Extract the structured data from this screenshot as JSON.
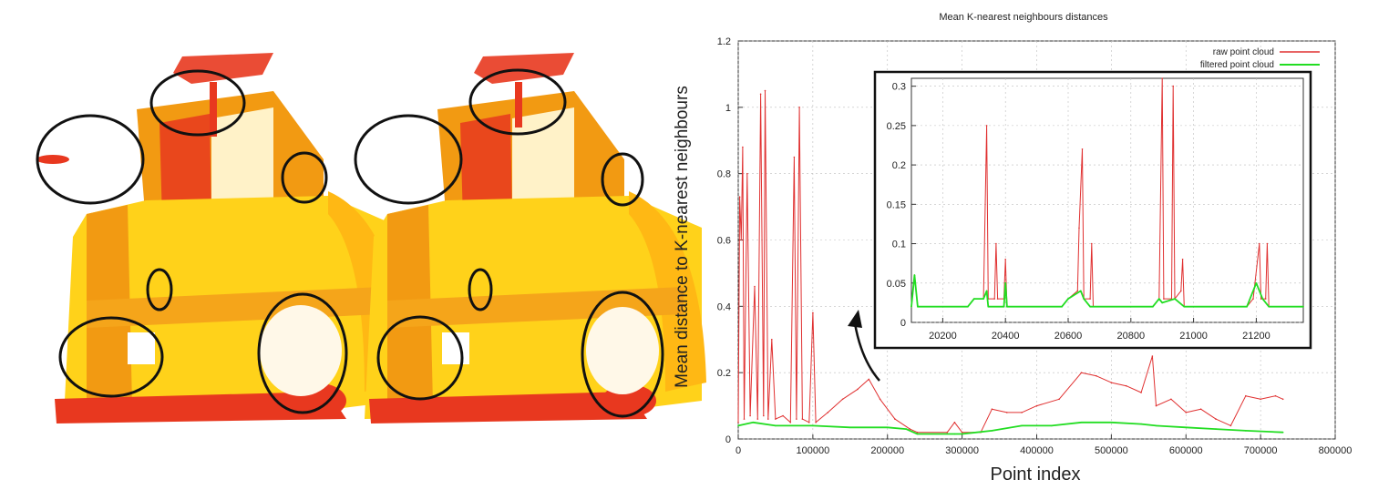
{
  "left_panel": {
    "images": [
      {
        "name": "raw-cloud",
        "circles": 7
      },
      {
        "name": "filtered-cloud",
        "circles": 7
      }
    ],
    "colors": {
      "red": "#e8381f",
      "orange": "#f29a12",
      "yellow": "#ffd21a",
      "outline": "#111111"
    }
  },
  "chart_data": [
    {
      "type": "line",
      "title": "Mean K-nearest neighbours distances",
      "xlabel": "Point index",
      "ylabel": "Mean distance to K-nearest neighbours",
      "xlim": [
        0,
        800000
      ],
      "ylim": [
        0,
        1.2
      ],
      "x_ticks": [
        "0",
        "100000",
        "200000",
        "300000",
        "400000",
        "500000",
        "600000",
        "700000",
        "800000"
      ],
      "y_ticks": [
        "0",
        "0.2",
        "0.4",
        "0.6",
        "0.8",
        "1",
        "1.2"
      ],
      "grid": true,
      "legend": "top-right",
      "series": [
        {
          "name": "raw point cloud",
          "color": "#e03030",
          "points": [
            [
              0,
              0.05
            ],
            [
              2000,
              0.73
            ],
            [
              4000,
              0.6
            ],
            [
              6000,
              0.88
            ],
            [
              8000,
              0.06
            ],
            [
              12000,
              0.8
            ],
            [
              16000,
              0.07
            ],
            [
              22000,
              0.46
            ],
            [
              26000,
              0.06
            ],
            [
              30000,
              1.04
            ],
            [
              34000,
              0.07
            ],
            [
              36000,
              1.05
            ],
            [
              40000,
              0.06
            ],
            [
              45000,
              0.3
            ],
            [
              50000,
              0.06
            ],
            [
              60000,
              0.07
            ],
            [
              70000,
              0.05
            ],
            [
              75000,
              0.85
            ],
            [
              78000,
              0.06
            ],
            [
              82000,
              1.0
            ],
            [
              86000,
              0.06
            ],
            [
              95000,
              0.05
            ],
            [
              100000,
              0.38
            ],
            [
              104000,
              0.05
            ],
            [
              120000,
              0.08
            ],
            [
              140000,
              0.12
            ],
            [
              160000,
              0.15
            ],
            [
              175000,
              0.18
            ],
            [
              190000,
              0.12
            ],
            [
              210000,
              0.06
            ],
            [
              230000,
              0.03
            ],
            [
              240000,
              0.02
            ],
            [
              280000,
              0.02
            ],
            [
              290000,
              0.05
            ],
            [
              300000,
              0.02
            ],
            [
              325000,
              0.02
            ],
            [
              340000,
              0.09
            ],
            [
              360000,
              0.08
            ],
            [
              380000,
              0.08
            ],
            [
              400000,
              0.1
            ],
            [
              430000,
              0.12
            ],
            [
              460000,
              0.2
            ],
            [
              480000,
              0.19
            ],
            [
              500000,
              0.17
            ],
            [
              520000,
              0.16
            ],
            [
              540000,
              0.14
            ],
            [
              555000,
              0.25
            ],
            [
              560000,
              0.1
            ],
            [
              580000,
              0.12
            ],
            [
              600000,
              0.08
            ],
            [
              620000,
              0.09
            ],
            [
              640000,
              0.06
            ],
            [
              660000,
              0.04
            ],
            [
              680000,
              0.13
            ],
            [
              700000,
              0.12
            ],
            [
              720000,
              0.13
            ],
            [
              730000,
              0.12
            ]
          ]
        },
        {
          "name": "filtered point cloud",
          "color": "#22dd22",
          "points": [
            [
              0,
              0.04
            ],
            [
              20000,
              0.05
            ],
            [
              50000,
              0.04
            ],
            [
              100000,
              0.04
            ],
            [
              150000,
              0.035
            ],
            [
              200000,
              0.035
            ],
            [
              225000,
              0.03
            ],
            [
              240000,
              0.015
            ],
            [
              290000,
              0.015
            ],
            [
              300000,
              0.015
            ],
            [
              320000,
              0.02
            ],
            [
              340000,
              0.025
            ],
            [
              380000,
              0.04
            ],
            [
              420000,
              0.04
            ],
            [
              460000,
              0.05
            ],
            [
              500000,
              0.05
            ],
            [
              540000,
              0.045
            ],
            [
              560000,
              0.04
            ],
            [
              600000,
              0.035
            ],
            [
              640000,
              0.03
            ],
            [
              680000,
              0.025
            ],
            [
              730000,
              0.02
            ]
          ]
        }
      ]
    },
    {
      "type": "line",
      "xlim": [
        20100,
        21350
      ],
      "ylim": [
        0,
        0.31
      ],
      "x_ticks": [
        "20200",
        "20400",
        "20600",
        "20800",
        "21000",
        "21200"
      ],
      "y_ticks": [
        "0",
        "0.05",
        "0.1",
        "0.15",
        "0.2",
        "0.25",
        "0.3"
      ],
      "grid": true,
      "series": [
        {
          "name": "raw point cloud",
          "color": "#e03030",
          "points": [
            [
              20100,
              0.02
            ],
            [
              20110,
              0.06
            ],
            [
              20120,
              0.02
            ],
            [
              20280,
              0.02
            ],
            [
              20300,
              0.03
            ],
            [
              20330,
              0.03
            ],
            [
              20340,
              0.25
            ],
            [
              20345,
              0.03
            ],
            [
              20365,
              0.03
            ],
            [
              20370,
              0.1
            ],
            [
              20375,
              0.03
            ],
            [
              20395,
              0.03
            ],
            [
              20400,
              0.08
            ],
            [
              20405,
              0.02
            ],
            [
              20580,
              0.02
            ],
            [
              20600,
              0.03
            ],
            [
              20630,
              0.04
            ],
            [
              20635,
              0.12
            ],
            [
              20645,
              0.22
            ],
            [
              20650,
              0.03
            ],
            [
              20670,
              0.03
            ],
            [
              20675,
              0.1
            ],
            [
              20680,
              0.02
            ],
            [
              20870,
              0.02
            ],
            [
              20890,
              0.03
            ],
            [
              20900,
              0.31
            ],
            [
              20905,
              0.03
            ],
            [
              20930,
              0.03
            ],
            [
              20935,
              0.3
            ],
            [
              20940,
              0.03
            ],
            [
              20960,
              0.04
            ],
            [
              20965,
              0.08
            ],
            [
              20970,
              0.02
            ],
            [
              21170,
              0.02
            ],
            [
              21190,
              0.03
            ],
            [
              21210,
              0.1
            ],
            [
              21215,
              0.03
            ],
            [
              21230,
              0.03
            ],
            [
              21235,
              0.1
            ],
            [
              21240,
              0.02
            ],
            [
              21350,
              0.02
            ]
          ]
        },
        {
          "name": "filtered point cloud",
          "color": "#22dd22",
          "points": [
            [
              20100,
              0.02
            ],
            [
              20110,
              0.06
            ],
            [
              20120,
              0.02
            ],
            [
              20280,
              0.02
            ],
            [
              20300,
              0.03
            ],
            [
              20330,
              0.03
            ],
            [
              20340,
              0.04
            ],
            [
              20345,
              0.02
            ],
            [
              20395,
              0.02
            ],
            [
              20400,
              0.05
            ],
            [
              20405,
              0.02
            ],
            [
              20580,
              0.02
            ],
            [
              20600,
              0.03
            ],
            [
              20640,
              0.04
            ],
            [
              20650,
              0.03
            ],
            [
              20670,
              0.02
            ],
            [
              20870,
              0.02
            ],
            [
              20890,
              0.03
            ],
            [
              20900,
              0.025
            ],
            [
              20940,
              0.03
            ],
            [
              20970,
              0.02
            ],
            [
              21170,
              0.02
            ],
            [
              21200,
              0.05
            ],
            [
              21220,
              0.03
            ],
            [
              21240,
              0.02
            ],
            [
              21350,
              0.02
            ]
          ]
        }
      ]
    }
  ]
}
